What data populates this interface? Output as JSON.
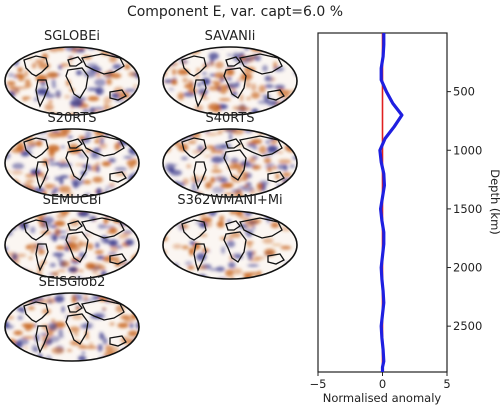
{
  "title": "Component E, var. capt=6.0 %",
  "maps": [
    {
      "label": "SGLOBEi"
    },
    {
      "label": "SAVANIi"
    },
    {
      "label": "S20RTS"
    },
    {
      "label": "S40RTS"
    },
    {
      "label": "SEMUCBi"
    },
    {
      "label": "S362WMANI+Mi"
    },
    {
      "label": "SEISGlob2"
    }
  ],
  "colors": {
    "positive": "#c8651e",
    "negative": "#3a3a8c",
    "profile": "#1f1fe0",
    "reference": "#e02020",
    "coast": "#111111"
  },
  "chart_data": {
    "type": "line",
    "xlabel": "Normalised anomaly",
    "ylabel": "Depth (km)",
    "xlim": [
      -5,
      5
    ],
    "ylim": [
      2891,
      0
    ],
    "xticks": [
      -5,
      0,
      5
    ],
    "yticks": [
      500,
      1000,
      1500,
      2000,
      2500
    ],
    "y_axis_side": "right",
    "grid": false,
    "series": [
      {
        "x": [
          0.1,
          0.1,
          0.05,
          -0.1,
          -0.1,
          0.3,
          0.8,
          1.5,
          0.9,
          0.2,
          -0.2,
          -0.1,
          0.1,
          0.15,
          0.0,
          -0.15,
          -0.05,
          0.1,
          0.1,
          0.0,
          -0.1,
          -0.05,
          0.05,
          0.1,
          0.0,
          -0.1,
          -0.05,
          0.05,
          0.1,
          0.0,
          0.0
        ],
        "y": [
          0,
          100,
          200,
          300,
          400,
          500,
          600,
          700,
          800,
          900,
          1000,
          1100,
          1200,
          1300,
          1400,
          1500,
          1600,
          1700,
          1800,
          1900,
          2000,
          2100,
          2200,
          2300,
          2400,
          2500,
          2600,
          2700,
          2800,
          2850,
          2891
        ]
      },
      {
        "x": [
          0,
          0
        ],
        "y": [
          0,
          2891
        ]
      }
    ]
  }
}
